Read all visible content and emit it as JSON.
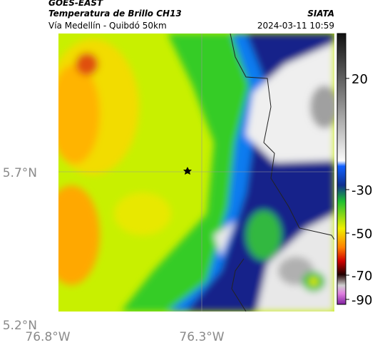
{
  "header": {
    "satellite": "GOES-EAST",
    "product": "Temperatura de Brillo CH13",
    "source": "SIATA",
    "route": "Vía Medellín - Quibdó 50km",
    "timestamp": "2024-03-11 10:59"
  },
  "axes": {
    "latitude_labels": [
      "5.7°N",
      "5.2°N"
    ],
    "longitude_labels": [
      "76.8°W",
      "76.3°W"
    ]
  },
  "colorbar": {
    "ticks": [
      20,
      -30,
      -50,
      -70,
      -90
    ]
  }
}
